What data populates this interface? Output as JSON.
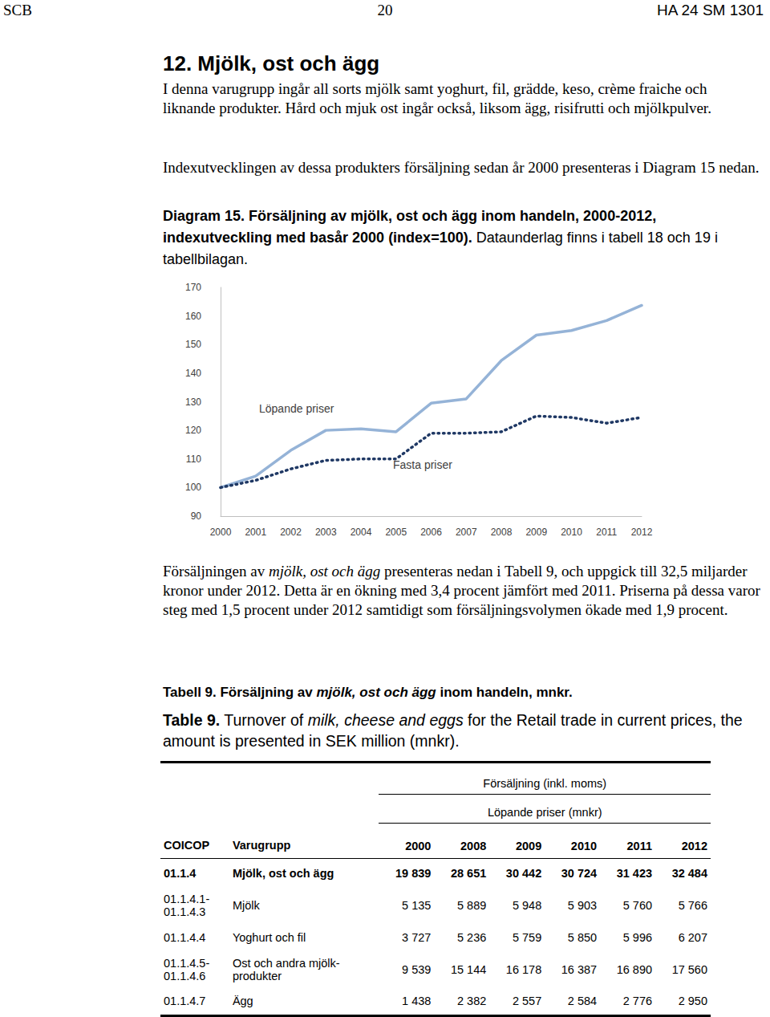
{
  "header": {
    "left": "SCB",
    "page": "20",
    "right": "HA 24 SM 1301"
  },
  "heading": "12. Mjölk, ost och ägg",
  "paragraphs_before": [
    [
      {
        "text": "I denna varugrupp ingår all sorts mjölk samt yoghurt, fil, grädde, keso, crème fraiche och liknande produkter. Hård och mjuk ost ingår också, liksom ägg, risifrutti och mjölkpulver.",
        "style": "normal"
      }
    ],
    [
      {
        "text": "Indexutvecklingen av dessa produkters försäljning sedan år 2000 presenteras i Diagram 15 nedan.",
        "style": "normal"
      }
    ]
  ],
  "diagram_caption": [
    {
      "text": "Diagram 15. Försäljning av mjölk, ost och ägg inom handeln, 2000-2012, indexutveckling med basår 2000 (index=100).",
      "style": "bold"
    },
    {
      "text": " Dataunderlag finns i tabell 18 och 19 i tabellbilagan.",
      "style": "normal"
    }
  ],
  "chart_data": {
    "type": "line",
    "categories": [
      "2000",
      "2001",
      "2002",
      "2003",
      "2004",
      "2005",
      "2006",
      "2007",
      "2008",
      "2009",
      "2010",
      "2011",
      "2012"
    ],
    "series": [
      {
        "name": "Löpande priser",
        "color": "#95b3d7",
        "line_style": "solid",
        "values": [
          100,
          104,
          113,
          120,
          120.5,
          119.5,
          129.5,
          131,
          144.4,
          153.3,
          154.9,
          158.4,
          163.7
        ]
      },
      {
        "name": "Fasta priser",
        "color": "#1f3864",
        "line_style": "dotted",
        "values": [
          100,
          102.5,
          106.5,
          109.5,
          110,
          110,
          119,
          119,
          119.5,
          125,
          124.5,
          122.5,
          124.5
        ]
      }
    ],
    "ylim": [
      90,
      170
    ],
    "yticks": [
      90,
      100,
      110,
      120,
      130,
      140,
      150,
      160,
      170
    ],
    "grid": false
  },
  "paragraph_after": [
    {
      "text": "Försäljningen av ",
      "style": "normal"
    },
    {
      "text": "mjölk, ost och ägg",
      "style": "italic"
    },
    {
      "text": " presenteras nedan i Tabell 9, och uppgick till 32,5 miljarder kronor under 2012. Detta är en ökning med 3,4 procent jämfört med 2011. Priserna på dessa varor steg med 1,5 procent under 2012 samtidigt som försäljningsvolymen ökade med 1,9 procent.",
      "style": "normal"
    }
  ],
  "table_caption_sv": [
    {
      "text": "Tabell 9. Försäljning av ",
      "style": "bold"
    },
    {
      "text": "mjölk, ost och ägg",
      "style": "bolditalic"
    },
    {
      "text": " inom handeln, mnkr.",
      "style": "bold"
    }
  ],
  "table_caption_en": [
    {
      "text": "Table 9.",
      "style": "bold"
    },
    {
      "text": " Turnover of ",
      "style": "normal"
    },
    {
      "text": "milk, cheese and eggs",
      "style": "italic"
    },
    {
      "text": " for the Retail trade in current prices, the amount is presented in SEK million (mnkr).",
      "style": "normal"
    }
  ],
  "table": {
    "group_header": "Försäljning (inkl. moms)",
    "sub_header": "Löpande priser (mnkr)",
    "columns": [
      "COICOP",
      "Varugrupp",
      "2000",
      "2008",
      "2009",
      "2010",
      "2011",
      "2012"
    ],
    "rows": [
      {
        "bold": true,
        "cells": [
          "01.1.4",
          "Mjölk, ost och ägg",
          "19 839",
          "28 651",
          "30 442",
          "30 724",
          "31 423",
          "32 484"
        ]
      },
      {
        "bold": false,
        "cells": [
          "01.1.4.1-\n01.1.4.3",
          "Mjölk",
          "5 135",
          "5 889",
          "5 948",
          "5 903",
          "5 760",
          "5 766"
        ]
      },
      {
        "bold": false,
        "cells": [
          "01.1.4.4",
          "Yoghurt och fil",
          "3 727",
          "5 236",
          "5 759",
          "5 850",
          "5 996",
          "6 207"
        ]
      },
      {
        "bold": false,
        "cells": [
          "01.1.4.5-\n01.1.4.6",
          "Ost och andra mjölk-\nprodukter",
          "9 539",
          "15 144",
          "16 178",
          "16 387",
          "16 890",
          "17 560"
        ]
      },
      {
        "bold": false,
        "cells": [
          "01.1.4.7",
          "Ägg",
          "1 438",
          "2 382",
          "2 557",
          "2 584",
          "2 776",
          "2 950"
        ]
      }
    ]
  }
}
